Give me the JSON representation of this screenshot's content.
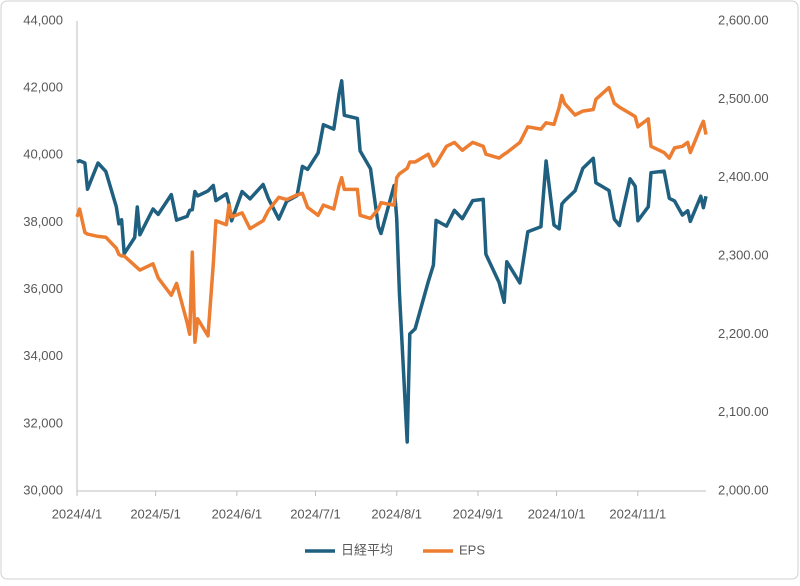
{
  "chart_data": {
    "type": "line",
    "x": [
      "2024/4/1",
      "2024/4/2",
      "2024/4/4",
      "2024/4/5",
      "2024/4/9",
      "2024/4/12",
      "2024/4/16",
      "2024/4/17",
      "2024/4/18",
      "2024/4/19",
      "2024/4/23",
      "2024/4/24",
      "2024/4/25",
      "2024/4/30",
      "2024/5/2",
      "2024/5/7",
      "2024/5/9",
      "2024/5/13",
      "2024/5/14",
      "2024/5/15",
      "2024/5/16",
      "2024/5/17",
      "2024/5/21",
      "2024/5/23",
      "2024/5/24",
      "2024/5/28",
      "2024/5/29",
      "2024/5/30",
      "2024/6/3",
      "2024/6/6",
      "2024/6/11",
      "2024/6/13",
      "2024/6/17",
      "2024/6/20",
      "2024/6/24",
      "2024/6/26",
      "2024/6/28",
      "2024/7/2",
      "2024/7/4",
      "2024/7/8",
      "2024/7/10",
      "2024/7/11",
      "2024/7/12",
      "2024/7/17",
      "2024/7/18",
      "2024/7/22",
      "2024/7/25",
      "2024/7/26",
      "2024/7/31",
      "2024/8/1",
      "2024/8/2",
      "2024/8/5",
      "2024/8/6",
      "2024/8/8",
      "2024/8/13",
      "2024/8/15",
      "2024/8/16",
      "2024/8/20",
      "2024/8/23",
      "2024/8/26",
      "2024/8/30",
      "2024/9/3",
      "2024/9/4",
      "2024/9/9",
      "2024/9/11",
      "2024/9/12",
      "2024/9/17",
      "2024/9/20",
      "2024/9/25",
      "2024/9/27",
      "2024/9/30",
      "2024/10/2",
      "2024/10/3",
      "2024/10/4",
      "2024/10/8",
      "2024/10/11",
      "2024/10/15",
      "2024/10/16",
      "2024/10/21",
      "2024/10/23",
      "2024/10/25",
      "2024/10/29",
      "2024/10/31",
      "2024/11/1",
      "2024/11/5",
      "2024/11/6",
      "2024/11/11",
      "2024/11/13",
      "2024/11/15",
      "2024/11/18",
      "2024/11/20",
      "2024/11/21",
      "2024/11/25",
      "2024/11/26",
      "2024/11/27"
    ],
    "series": [
      {
        "name": "日経平均",
        "color": "#1f5f7f",
        "values": [
          39800,
          39840,
          39770,
          38990,
          39770,
          39520,
          38470,
          37960,
          38080,
          37070,
          37550,
          38460,
          37630,
          38400,
          38240,
          38830,
          38070,
          38180,
          38360,
          38380,
          38920,
          38790,
          38940,
          39100,
          38650,
          38850,
          38550,
          38050,
          38920,
          38700,
          39130,
          38720,
          38100,
          38630,
          38800,
          39670,
          39580,
          40070,
          40910,
          40780,
          41830,
          42220,
          41190,
          41100,
          40130,
          39600,
          37870,
          37670,
          39100,
          38130,
          35910,
          31460,
          34680,
          34830,
          36230,
          36730,
          38060,
          37890,
          38360,
          38110,
          38650,
          38690,
          37050,
          36220,
          35620,
          36830,
          36200,
          37720,
          37870,
          39830,
          37920,
          37810,
          38550,
          38640,
          38940,
          39610,
          39910,
          39180,
          38950,
          38100,
          37910,
          39300,
          39080,
          38050,
          38470,
          39480,
          39530,
          38720,
          38640,
          38220,
          38350,
          38030,
          38780,
          38440,
          38780
        ]
      },
      {
        "name": "EPS",
        "color": "#ed7d31",
        "axis": "y2",
        "values": [
          2350,
          2360,
          2330,
          2328,
          2325,
          2324,
          2310,
          2302,
          2300,
          2300,
          2288,
          2285,
          2282,
          2290,
          2272,
          2250,
          2265,
          2215,
          2200,
          2305,
          2190,
          2220,
          2198,
          2290,
          2345,
          2340,
          2365,
          2350,
          2355,
          2335,
          2345,
          2358,
          2375,
          2372,
          2378,
          2380,
          2362,
          2352,
          2365,
          2360,
          2390,
          2400,
          2385,
          2385,
          2352,
          2348,
          2360,
          2368,
          2365,
          2400,
          2405,
          2412,
          2420,
          2420,
          2430,
          2415,
          2418,
          2440,
          2445,
          2435,
          2445,
          2440,
          2430,
          2425,
          2430,
          2432,
          2445,
          2465,
          2462,
          2470,
          2468,
          2490,
          2505,
          2495,
          2480,
          2485,
          2487,
          2500,
          2515,
          2495,
          2490,
          2482,
          2478,
          2465,
          2475,
          2440,
          2432,
          2425,
          2438,
          2440,
          2445,
          2432,
          2465,
          2472,
          2455
        ]
      }
    ],
    "xlim": [
      "2024/4/1",
      "2024/11/27"
    ],
    "xticks": [
      "2024/4/1",
      "2024/5/1",
      "2024/6/1",
      "2024/7/1",
      "2024/8/1",
      "2024/9/1",
      "2024/10/1",
      "2024/11/1"
    ],
    "ylim": [
      30000,
      44000
    ],
    "yticks": [
      {
        "value": 30000,
        "label": "30,000"
      },
      {
        "value": 32000,
        "label": "32,000"
      },
      {
        "value": 34000,
        "label": "34,000"
      },
      {
        "value": 36000,
        "label": "36,000"
      },
      {
        "value": 38000,
        "label": "38,000"
      },
      {
        "value": 40000,
        "label": "40,000"
      },
      {
        "value": 42000,
        "label": "42,000"
      },
      {
        "value": 44000,
        "label": "44,000"
      }
    ],
    "y2lim": [
      2000,
      2600
    ],
    "y2ticks": [
      {
        "value": 2000,
        "label": "2,000.00"
      },
      {
        "value": 2100,
        "label": "2,100.00"
      },
      {
        "value": 2200,
        "label": "2,200.00"
      },
      {
        "value": 2300,
        "label": "2,300.00"
      },
      {
        "value": 2400,
        "label": "2,400.00"
      },
      {
        "value": 2500,
        "label": "2,500.00"
      },
      {
        "value": 2600,
        "label": "2,600.00"
      }
    ],
    "legend": "bottom"
  }
}
